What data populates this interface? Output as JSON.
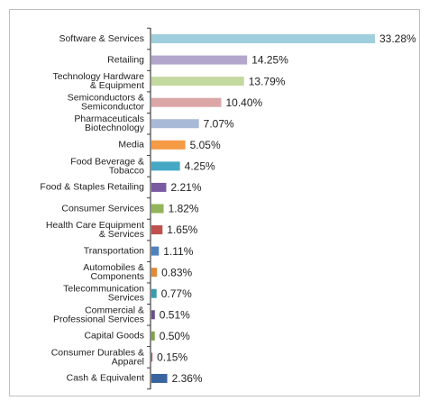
{
  "chart_data": {
    "type": "bar",
    "orientation": "horizontal",
    "categories": [
      "Software & Services",
      "Retailing",
      "Technology Hardware\n& Equipment",
      "Semiconductors &\nSemiconductor",
      "Pharmaceuticals\nBiotechnology",
      "Media",
      "Food Beverage &\nTobacco",
      "Food & Staples Retailing",
      "Consumer Services",
      "Health Care Equipment\n& Services",
      "Transportation",
      "Automobiles &\nComponents",
      "Telecommunication\nServices",
      "Commercial &\nProfessional Services",
      "Capital Goods",
      "Consumer Durables &\nApparel",
      "Cash & Equivalent"
    ],
    "values": [
      33.28,
      14.25,
      13.79,
      10.4,
      7.07,
      5.05,
      4.25,
      2.21,
      1.82,
      1.65,
      1.11,
      0.83,
      0.77,
      0.51,
      0.5,
      0.15,
      2.36
    ],
    "value_labels": [
      "33.28%",
      "14.25%",
      "13.79%",
      "10.40%",
      "7.07%",
      "5.05%",
      "4.25%",
      "2.21%",
      "1.82%",
      "1.65%",
      "1.11%",
      "0.83%",
      "0.77%",
      "0.51%",
      "0.50%",
      "0.15%",
      "2.36%"
    ],
    "colors": [
      "#9fcfdc",
      "#b3a6cc",
      "#c4d9a0",
      "#dca6a6",
      "#a8b9d8",
      "#f59a45",
      "#45a9c6",
      "#7a5aa0",
      "#93b45a",
      "#c0504d",
      "#4f81bd",
      "#e08a3a",
      "#3a9bb0",
      "#6a4d8c",
      "#7ea346",
      "#b8423e",
      "#3a64a0"
    ]
  }
}
